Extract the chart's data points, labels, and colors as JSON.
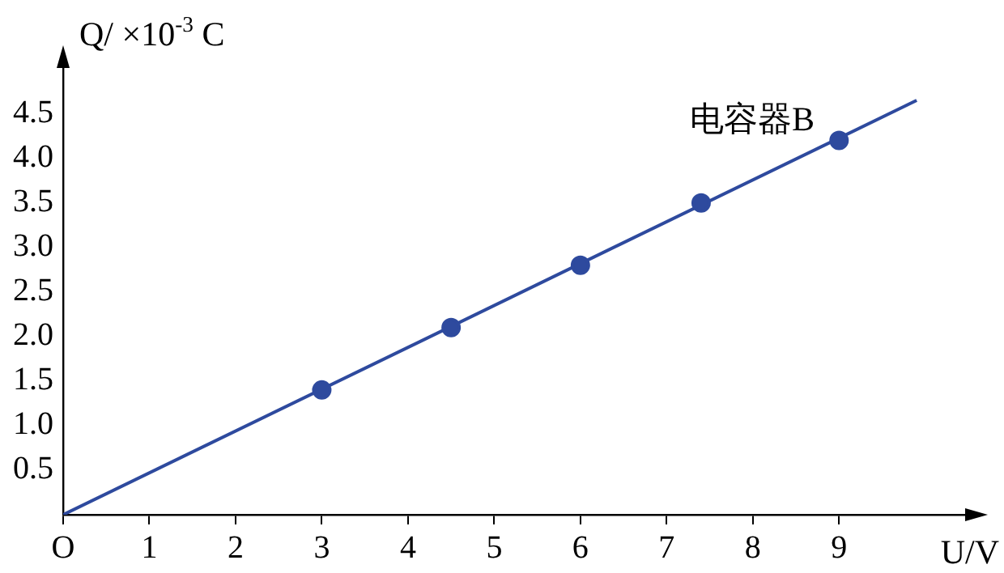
{
  "chart_data": {
    "type": "scatter",
    "xlabel": "U/V",
    "ylabel": "Q/ ×10$^{-3}$ C",
    "xlim": [
      0,
      10.5
    ],
    "ylim": [
      0,
      5.05
    ],
    "xticks": [
      {
        "value": 0,
        "label": "O"
      },
      1,
      2,
      3,
      4,
      5,
      6,
      7,
      8,
      9
    ],
    "yticks": [
      0.5,
      {
        "value": 1,
        "label": "1.0"
      },
      1.5,
      {
        "value": 2,
        "label": "2.0"
      },
      2.5,
      {
        "value": 3,
        "label": "3.0"
      },
      3.5,
      {
        "value": 4,
        "label": "4.0"
      },
      4.5
    ],
    "grid": false,
    "legend": false,
    "marker": "circle",
    "series": [
      {
        "color": "#2e4a9e",
        "x": [
          3,
          4.5,
          6,
          7.4,
          9
        ],
        "values": [
          1.4,
          2.1,
          2.8,
          3.5,
          4.2
        ]
      },
      {
        "type": "line",
        "color": "#2e4a9e",
        "x": [
          0,
          9.9
        ],
        "values": [
          0,
          4.65
        ],
        "marker": "none",
        "line_style": "solid"
      }
    ],
    "annotations": [
      "电容器B"
    ]
  }
}
